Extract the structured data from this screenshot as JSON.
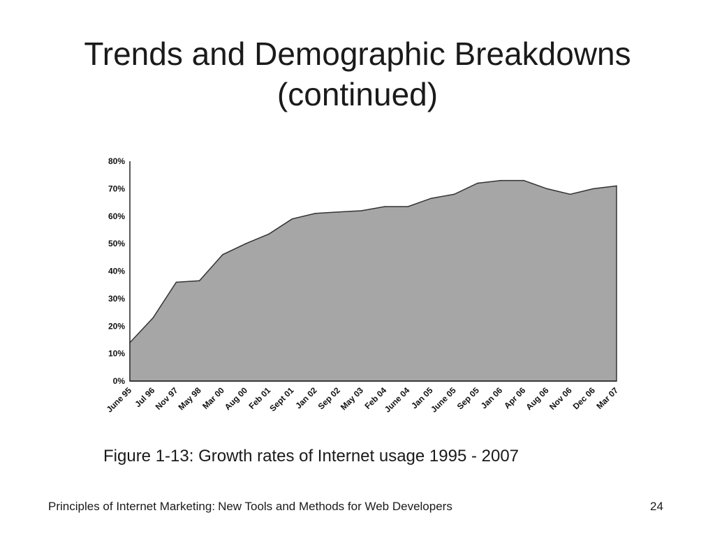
{
  "slide": {
    "title_line1": "Trends and Demographic Breakdowns",
    "title_line2": "(continued)",
    "caption": "Figure 1-13: Growth rates of Internet usage 1995 - 2007",
    "footer_book": "Principles of Internet Marketing:",
    "footer_subtitle": "New Tools and Methods for Web Developers",
    "page_number": "24"
  },
  "chart_data": {
    "type": "area",
    "title": "",
    "xlabel": "",
    "ylabel": "",
    "ylim": [
      0,
      80
    ],
    "y_ticks": [
      "0%",
      "10%",
      "20%",
      "30%",
      "40%",
      "50%",
      "60%",
      "70%",
      "80%"
    ],
    "categories": [
      "June 95",
      "Jul 96",
      "Nov 97",
      "May 98",
      "Mar 00",
      "Aug 00",
      "Feb 01",
      "Sept 01",
      "Jan 02",
      "Sep 02",
      "May 03",
      "Feb 04",
      "June 04",
      "Jan 05",
      "June 05",
      "Sep 05",
      "Jan 06",
      "Apr 06",
      "Aug 06",
      "Nov 06",
      "Dec 06",
      "Mar 07"
    ],
    "series": [
      {
        "values": [
          14,
          23,
          36,
          36.5,
          46,
          50,
          53.5,
          59,
          61,
          61.5,
          62,
          63.5,
          63.5,
          66.5,
          68,
          72,
          73,
          73,
          70,
          68,
          70,
          71
        ]
      }
    ],
    "fill_color": "#a6a6a6",
    "stroke_color": "#333333",
    "grid": false
  }
}
